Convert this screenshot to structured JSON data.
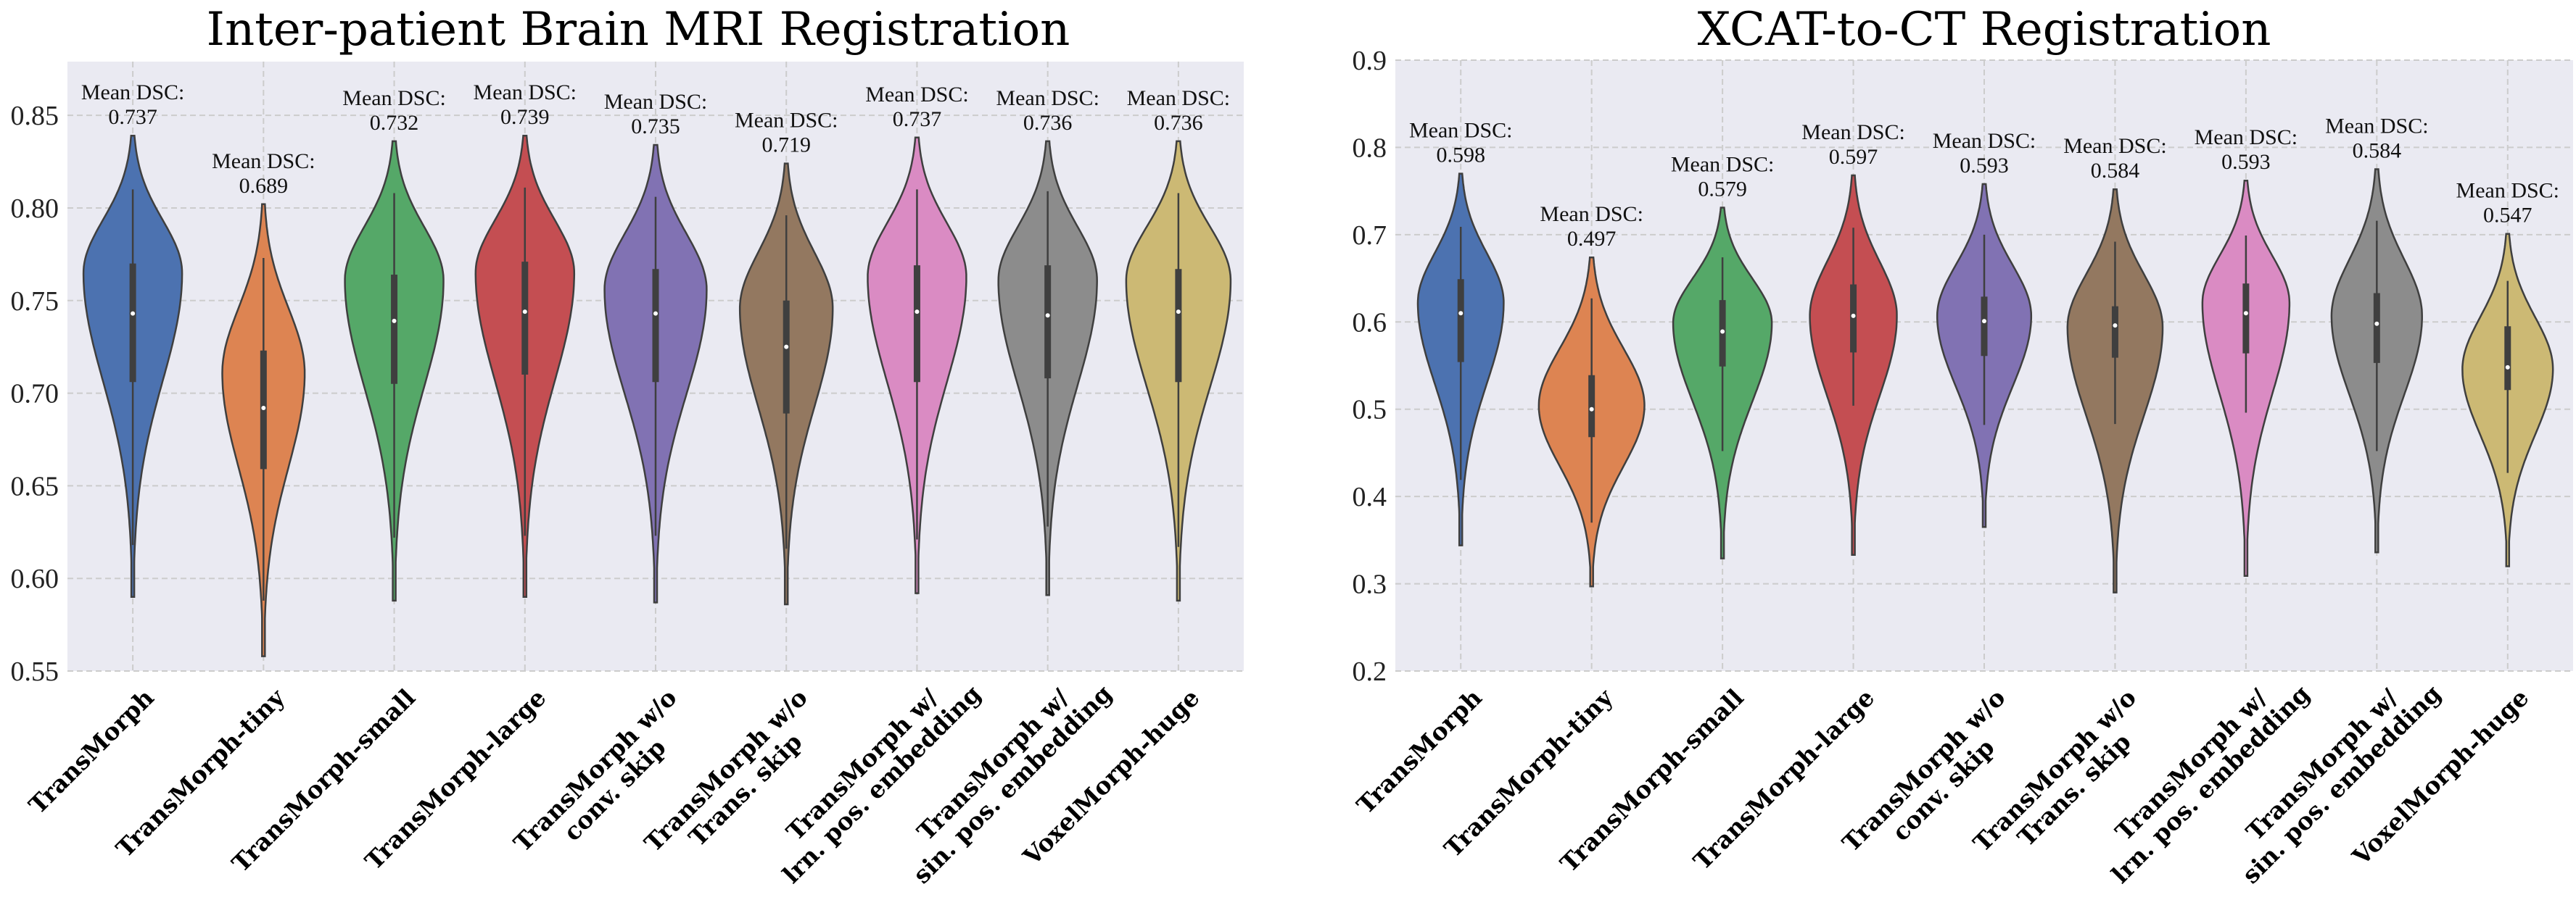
{
  "chart_data": [
    {
      "type": "violin",
      "title": "Inter-patient Brain MRI Registration",
      "ylim": [
        0.55,
        0.879
      ],
      "yticks": [
        "0.55",
        "0.60",
        "0.65",
        "0.70",
        "0.75",
        "0.80",
        "0.85"
      ],
      "grid": true,
      "annotation_prefix": "Mean DSC:",
      "categories": [
        "TransMorph",
        "TransMorph-tiny",
        "TransMorph-small",
        "TransMorph-large",
        "TransMorph w/o\nconv. skip",
        "TransMorph w/o\nTrans. skip",
        "TransMorph w/\nlrn. pos. embedding",
        "TransMorph w/\nsin. pos. embedding",
        "VoxelMorph-huge"
      ],
      "series": [
        {
          "mean": "0.737",
          "min": 0.59,
          "max": 0.839,
          "mode": 0.765,
          "q1": 0.706,
          "median": 0.743,
          "q3": 0.77,
          "whisker_low": 0.618,
          "whisker_high": 0.81,
          "relative_density": 0.85,
          "color": "#4C72B0"
        },
        {
          "mean": "0.689",
          "min": 0.558,
          "max": 0.802,
          "mode": 0.711,
          "q1": 0.659,
          "median": 0.692,
          "q3": 0.723,
          "whisker_low": 0.588,
          "whisker_high": 0.773,
          "relative_density": 0.71,
          "color": "#DD8452"
        },
        {
          "mean": "0.732",
          "min": 0.588,
          "max": 0.836,
          "mode": 0.761,
          "q1": 0.705,
          "median": 0.739,
          "q3": 0.764,
          "whisker_low": 0.622,
          "whisker_high": 0.808,
          "relative_density": 0.85,
          "color": "#55A868"
        },
        {
          "mean": "0.739",
          "min": 0.59,
          "max": 0.839,
          "mode": 0.765,
          "q1": 0.71,
          "median": 0.744,
          "q3": 0.771,
          "whisker_low": 0.623,
          "whisker_high": 0.811,
          "relative_density": 0.85,
          "color": "#C44E52"
        },
        {
          "mean": "0.735",
          "min": 0.587,
          "max": 0.834,
          "mode": 0.756,
          "q1": 0.706,
          "median": 0.743,
          "q3": 0.767,
          "whisker_low": 0.623,
          "whisker_high": 0.806,
          "relative_density": 0.88,
          "color": "#8172B3"
        },
        {
          "mean": "0.719",
          "min": 0.586,
          "max": 0.824,
          "mode": 0.746,
          "q1": 0.689,
          "median": 0.725,
          "q3": 0.75,
          "whisker_low": 0.616,
          "whisker_high": 0.796,
          "relative_density": 0.8,
          "color": "#937860"
        },
        {
          "mean": "0.737",
          "min": 0.592,
          "max": 0.838,
          "mode": 0.763,
          "q1": 0.706,
          "median": 0.744,
          "q3": 0.769,
          "whisker_low": 0.621,
          "whisker_high": 0.81,
          "relative_density": 0.85,
          "color": "#DA8BC3"
        },
        {
          "mean": "0.736",
          "min": 0.591,
          "max": 0.836,
          "mode": 0.761,
          "q1": 0.708,
          "median": 0.742,
          "q3": 0.769,
          "whisker_low": 0.628,
          "whisker_high": 0.809,
          "relative_density": 0.85,
          "color": "#8C8C8C"
        },
        {
          "mean": "0.736",
          "min": 0.588,
          "max": 0.836,
          "mode": 0.761,
          "q1": 0.706,
          "median": 0.744,
          "q3": 0.767,
          "whisker_low": 0.617,
          "whisker_high": 0.808,
          "relative_density": 0.9,
          "color": "#CCB974"
        }
      ]
    },
    {
      "type": "violin",
      "title": "XCAT-to-CT Registration",
      "ylim": [
        0.2,
        0.9
      ],
      "yticks": [
        "0.2",
        "0.3",
        "0.4",
        "0.5",
        "0.6",
        "0.7",
        "0.8",
        "0.9"
      ],
      "grid": true,
      "annotation_prefix": "Mean DSC:",
      "categories": [
        "TransMorph",
        "TransMorph-tiny",
        "TransMorph-small",
        "TransMorph-large",
        "TransMorph w/o\nconv. skip",
        "TransMorph w/o\nTrans. skip",
        "TransMorph w/\nlrn. pos. embedding",
        "TransMorph w/\nsin. pos. embedding",
        "VoxelMorph-huge"
      ],
      "series": [
        {
          "mean": "0.598",
          "min": 0.344,
          "max": 0.77,
          "mode": 0.622,
          "q1": 0.554,
          "median": 0.61,
          "q3": 0.649,
          "whisker_low": 0.419,
          "whisker_high": 0.709,
          "relative_density": 0.74,
          "color": "#4C72B0"
        },
        {
          "mean": "0.497",
          "min": 0.297,
          "max": 0.674,
          "mode": 0.504,
          "q1": 0.468,
          "median": 0.5,
          "q3": 0.539,
          "whisker_low": 0.37,
          "whisker_high": 0.627,
          "relative_density": 0.91,
          "color": "#DD8452"
        },
        {
          "mean": "0.579",
          "min": 0.329,
          "max": 0.731,
          "mode": 0.599,
          "q1": 0.549,
          "median": 0.589,
          "q3": 0.625,
          "whisker_low": 0.452,
          "whisker_high": 0.674,
          "relative_density": 0.85,
          "color": "#55A868"
        },
        {
          "mean": "0.597",
          "min": 0.333,
          "max": 0.768,
          "mode": 0.607,
          "q1": 0.565,
          "median": 0.607,
          "q3": 0.643,
          "whisker_low": 0.504,
          "whisker_high": 0.708,
          "relative_density": 0.75,
          "color": "#C44E52"
        },
        {
          "mean": "0.593",
          "min": 0.365,
          "max": 0.758,
          "mode": 0.607,
          "q1": 0.561,
          "median": 0.601,
          "q3": 0.629,
          "whisker_low": 0.482,
          "whisker_high": 0.7,
          "relative_density": 0.81,
          "color": "#8172B3"
        },
        {
          "mean": "0.584",
          "min": 0.29,
          "max": 0.752,
          "mode": 0.594,
          "q1": 0.559,
          "median": 0.596,
          "q3": 0.618,
          "whisker_low": 0.483,
          "whisker_high": 0.692,
          "relative_density": 0.82,
          "color": "#937860"
        },
        {
          "mean": "0.593",
          "min": 0.309,
          "max": 0.762,
          "mode": 0.622,
          "q1": 0.564,
          "median": 0.61,
          "q3": 0.644,
          "whisker_low": 0.496,
          "whisker_high": 0.699,
          "relative_density": 0.75,
          "color": "#DA8BC3"
        },
        {
          "mean": "0.584",
          "min": 0.336,
          "max": 0.775,
          "mode": 0.607,
          "q1": 0.553,
          "median": 0.598,
          "q3": 0.633,
          "whisker_low": 0.452,
          "whisker_high": 0.716,
          "relative_density": 0.78,
          "color": "#8C8C8C"
        },
        {
          "mean": "0.547",
          "min": 0.32,
          "max": 0.701,
          "mode": 0.546,
          "q1": 0.522,
          "median": 0.548,
          "q3": 0.595,
          "whisker_low": 0.427,
          "whisker_high": 0.647,
          "relative_density": 0.78,
          "color": "#CCB974"
        }
      ]
    }
  ],
  "colors": {
    "plot_background": "#EAEAF2",
    "grid": "#CCCCCC",
    "outline": "#3F3F3F"
  }
}
